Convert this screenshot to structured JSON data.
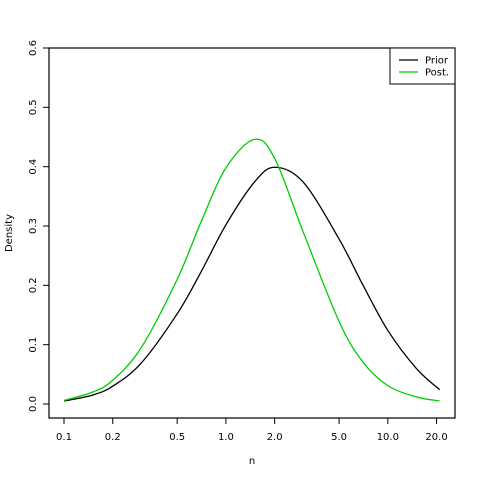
{
  "chart_data": {
    "type": "line",
    "title": "",
    "xlabel": "n",
    "ylabel": "Density",
    "x_scale": "log",
    "xlim": [
      0.1,
      21
    ],
    "ylim": [
      0.0,
      0.6
    ],
    "grid": false,
    "legend_placement": "top-right",
    "x_ticks": [
      {
        "value": 0.1,
        "label": "0.1"
      },
      {
        "value": 0.2,
        "label": "0.2"
      },
      {
        "value": 0.5,
        "label": "0.5"
      },
      {
        "value": 1.0,
        "label": "1.0"
      },
      {
        "value": 2.0,
        "label": "2.0"
      },
      {
        "value": 5.0,
        "label": "5.0"
      },
      {
        "value": 10.0,
        "label": "10.0"
      },
      {
        "value": 20.0,
        "label": "20.0"
      }
    ],
    "y_ticks": [
      {
        "value": 0.0,
        "label": "0.0"
      },
      {
        "value": 0.1,
        "label": "0.1"
      },
      {
        "value": 0.2,
        "label": "0.2"
      },
      {
        "value": 0.3,
        "label": "0.3"
      },
      {
        "value": 0.4,
        "label": "0.4"
      },
      {
        "value": 0.5,
        "label": "0.5"
      },
      {
        "value": 0.6,
        "label": "0.6"
      }
    ],
    "series": [
      {
        "name": "Prior",
        "color": "#000000",
        "x": [
          0.1,
          0.15,
          0.2,
          0.3,
          0.5,
          0.7,
          1.0,
          1.5,
          2.0,
          3.0,
          5.0,
          7.0,
          10.0,
          15.0,
          20.9
        ],
        "y": [
          0.005,
          0.015,
          0.03,
          0.069,
          0.152,
          0.222,
          0.302,
          0.374,
          0.399,
          0.374,
          0.278,
          0.201,
          0.124,
          0.06,
          0.024
        ]
      },
      {
        "name": "Post.",
        "color": "#00cc00",
        "x": [
          0.1,
          0.15,
          0.2,
          0.3,
          0.5,
          0.7,
          1.0,
          1.5,
          2.0,
          3.0,
          5.0,
          7.0,
          10.0,
          15.0,
          20.9
        ],
        "y": [
          0.006,
          0.02,
          0.04,
          0.095,
          0.21,
          0.306,
          0.398,
          0.446,
          0.414,
          0.29,
          0.139,
          0.071,
          0.031,
          0.012,
          0.005
        ]
      }
    ]
  }
}
